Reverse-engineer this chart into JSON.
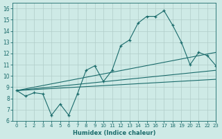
{
  "title": "",
  "xlabel": "Humidex (Indice chaleur)",
  "xlim": [
    -0.5,
    23
  ],
  "ylim": [
    6,
    16.5
  ],
  "xticks": [
    0,
    1,
    2,
    3,
    4,
    5,
    6,
    7,
    8,
    9,
    10,
    11,
    12,
    13,
    14,
    15,
    16,
    17,
    18,
    19,
    20,
    21,
    22,
    23
  ],
  "yticks": [
    6,
    7,
    8,
    9,
    10,
    11,
    12,
    13,
    14,
    15,
    16
  ],
  "background_color": "#ceeae6",
  "grid_color": "#b0cdc9",
  "line_color": "#1a6b6b",
  "series_main": {
    "x": [
      0,
      1,
      2,
      3,
      4,
      5,
      6,
      7,
      8,
      9,
      10,
      11,
      12,
      13,
      14,
      15,
      16,
      17,
      18,
      19,
      20,
      21,
      22,
      23
    ],
    "y": [
      8.7,
      8.2,
      8.5,
      8.4,
      6.5,
      7.5,
      6.5,
      8.4,
      10.5,
      10.9,
      9.5,
      10.5,
      12.7,
      13.2,
      14.7,
      15.3,
      15.3,
      15.8,
      14.5,
      13.0,
      11.0,
      12.1,
      11.8,
      10.9
    ]
  },
  "ref_lines": [
    {
      "x": [
        0,
        23
      ],
      "y": [
        8.7,
        9.7
      ]
    },
    {
      "x": [
        0,
        23
      ],
      "y": [
        8.7,
        10.5
      ]
    },
    {
      "x": [
        0,
        23
      ],
      "y": [
        8.7,
        12.1
      ]
    }
  ]
}
